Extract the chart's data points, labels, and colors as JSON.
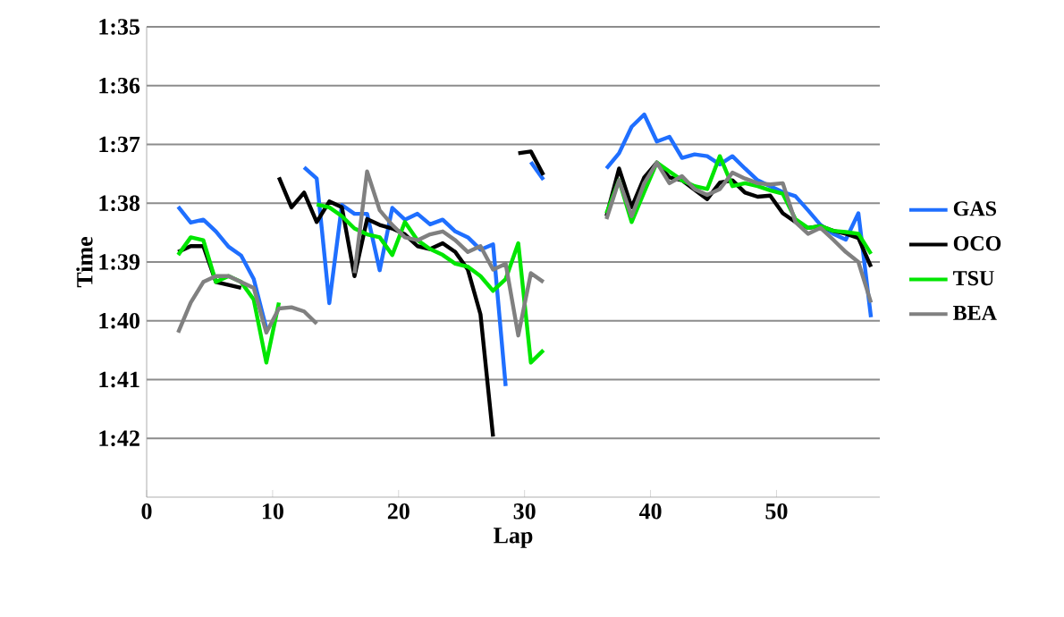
{
  "chart_data": {
    "type": "line",
    "xlabel": "Lap",
    "ylabel": "Time",
    "x": [
      2.5,
      3.5,
      4.5,
      5.5,
      6.5,
      7.5,
      8.5,
      9.5,
      10.5,
      11.5,
      12.5,
      13.5,
      14.5,
      15.5,
      16.5,
      17.5,
      18.5,
      19.5,
      20.5,
      21.5,
      22.5,
      23.5,
      24.5,
      25.5,
      26.5,
      27.5,
      28.5,
      29.5,
      30.5,
      31.5,
      32.5,
      33.5,
      34.5,
      35.5,
      36.5,
      37.5,
      38.5,
      39.5,
      40.5,
      41.5,
      42.5,
      43.5,
      44.5,
      45.5,
      46.5,
      47.5,
      48.5,
      49.5,
      50.5,
      51.5,
      52.5,
      53.5,
      54.5,
      55.5,
      56.5,
      57.5
    ],
    "series": [
      {
        "name": "GAS",
        "color": "#1f6fff",
        "values": [
          98.06,
          98.33,
          98.28,
          98.48,
          98.74,
          98.89,
          99.29,
          100.13,
          null,
          null,
          97.39,
          97.58,
          99.7,
          98.03,
          98.18,
          98.18,
          99.14,
          98.08,
          98.28,
          98.18,
          98.36,
          98.28,
          98.48,
          98.58,
          98.79,
          98.7,
          101.11,
          null,
          97.3,
          97.6,
          null,
          null,
          null,
          null,
          97.41,
          97.15,
          96.7,
          96.49,
          96.95,
          96.87,
          97.23,
          97.17,
          97.2,
          97.34,
          97.2,
          97.41,
          97.61,
          97.71,
          97.81,
          97.88,
          98.12,
          98.37,
          98.52,
          98.62,
          98.17,
          99.94
        ]
      },
      {
        "name": "OCO",
        "color": "#000000",
        "values": [
          98.83,
          98.73,
          98.73,
          99.34,
          99.39,
          99.44,
          null,
          null,
          97.56,
          98.07,
          97.82,
          98.32,
          97.97,
          98.07,
          99.24,
          98.27,
          98.37,
          98.43,
          98.53,
          98.73,
          98.78,
          98.68,
          98.83,
          99.13,
          99.89,
          101.97,
          null,
          97.15,
          97.12,
          97.52,
          null,
          null,
          null,
          null,
          98.22,
          97.41,
          98.07,
          97.56,
          97.31,
          97.56,
          97.61,
          97.77,
          97.93,
          97.65,
          97.61,
          97.82,
          97.89,
          97.87,
          98.17,
          98.32,
          98.42,
          98.39,
          98.47,
          98.52,
          98.59,
          99.08
        ]
      },
      {
        "name": "TSU",
        "color": "#00e600",
        "values": [
          98.88,
          98.58,
          98.63,
          99.34,
          99.24,
          99.34,
          99.64,
          100.71,
          99.69,
          null,
          null,
          98.02,
          98.07,
          98.22,
          98.43,
          98.53,
          98.58,
          98.88,
          98.32,
          98.63,
          98.78,
          98.88,
          99.03,
          99.08,
          99.24,
          99.49,
          99.29,
          98.68,
          100.71,
          100.5,
          null,
          null,
          null,
          null,
          98.17,
          97.61,
          98.32,
          97.81,
          97.31,
          97.46,
          97.61,
          97.71,
          97.76,
          97.2,
          97.71,
          97.66,
          97.71,
          97.78,
          97.84,
          98.27,
          98.42,
          98.39,
          98.47,
          98.49,
          98.52,
          98.86
        ]
      },
      {
        "name": "BEA",
        "color": "#808080",
        "values": [
          100.2,
          99.69,
          99.34,
          99.24,
          99.24,
          99.34,
          99.44,
          100.2,
          99.79,
          99.77,
          99.84,
          100.05,
          null,
          null,
          99.19,
          97.46,
          98.12,
          98.37,
          98.58,
          98.63,
          98.53,
          98.48,
          98.63,
          98.83,
          98.73,
          99.13,
          99.03,
          100.25,
          99.19,
          99.34,
          null,
          null,
          null,
          null,
          98.27,
          97.61,
          98.22,
          97.66,
          97.31,
          97.66,
          97.54,
          97.76,
          97.86,
          97.76,
          97.48,
          97.58,
          97.66,
          97.68,
          97.66,
          98.32,
          98.52,
          98.42,
          98.62,
          98.83,
          99.0,
          99.69
        ]
      }
    ],
    "xlim": [
      0,
      58.2
    ],
    "xticks": [
      0,
      10,
      20,
      30,
      40,
      50
    ],
    "ylim": [
      103,
      95
    ],
    "yticks": [
      {
        "value": 95,
        "label": "1:35"
      },
      {
        "value": 96,
        "label": "1:36"
      },
      {
        "value": 97,
        "label": "1:37"
      },
      {
        "value": 98,
        "label": "1:38"
      },
      {
        "value": 99,
        "label": "1:39"
      },
      {
        "value": 100,
        "label": "1:40"
      },
      {
        "value": 101,
        "label": "1:41"
      },
      {
        "value": 102,
        "label": "1:42"
      }
    ],
    "grid": "y",
    "legend": "right",
    "marker": "none",
    "line_style": "solid"
  }
}
